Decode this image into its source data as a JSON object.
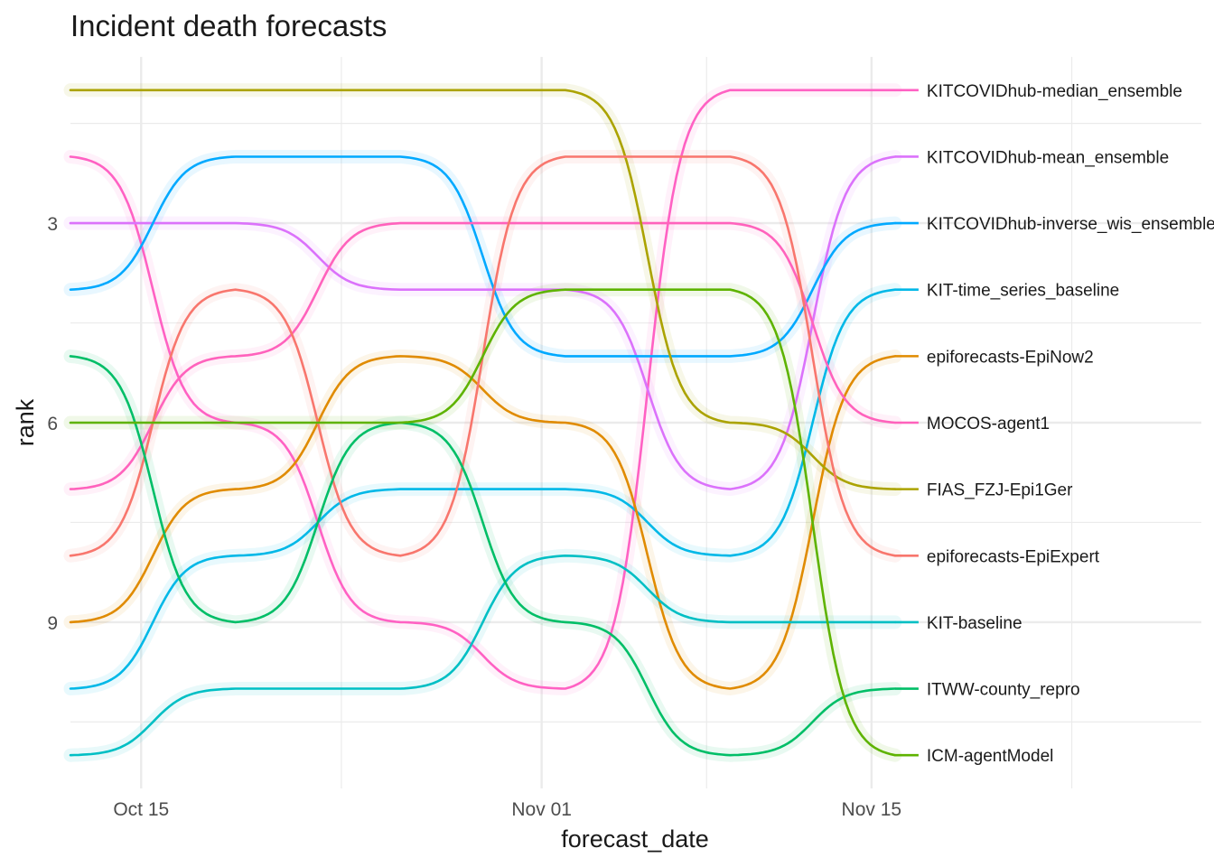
{
  "chart_data": {
    "type": "line",
    "subtype": "bump",
    "title": "Incident death forecasts",
    "xlabel": "forecast_date",
    "ylabel": "rank",
    "x": [
      "2020-10-12",
      "2020-10-19",
      "2020-10-26",
      "2020-11-02",
      "2020-11-09",
      "2020-11-16"
    ],
    "x_ticks": [
      {
        "date": "2020-10-15",
        "label": "Oct 15"
      },
      {
        "date": "2020-11-01",
        "label": "Nov 01"
      },
      {
        "date": "2020-11-15",
        "label": "Nov 15"
      }
    ],
    "xlim": [
      "2020-10-12",
      "2020-11-29"
    ],
    "y_ticks": [
      3,
      6,
      9
    ],
    "ylim": [
      11.5,
      0.5
    ],
    "y_reversed": true,
    "grid": true,
    "legend": "direct labels at right end of each line",
    "series": [
      {
        "name": "KITCOVIDhub-median_ensemble",
        "color": "#FF61C3",
        "values": [
          2,
          6,
          9,
          10,
          1,
          1
        ]
      },
      {
        "name": "KITCOVIDhub-mean_ensemble",
        "color": "#DB72FB",
        "values": [
          3,
          3,
          4,
          4,
          7,
          2
        ]
      },
      {
        "name": "KITCOVIDhub-inverse_wis_ensemble",
        "color": "#00A9FF",
        "values": [
          4,
          2,
          2,
          5,
          5,
          3
        ]
      },
      {
        "name": "KIT-time_series_baseline",
        "color": "#00B8E7",
        "values": [
          10,
          8,
          7,
          7,
          8,
          4
        ]
      },
      {
        "name": "epiforecasts-EpiNow2",
        "color": "#E08B00",
        "values": [
          9,
          7,
          5,
          6,
          10,
          5
        ]
      },
      {
        "name": "MOCOS-agent1",
        "color": "#FF62BC",
        "values": [
          7,
          5,
          3,
          3,
          3,
          6
        ]
      },
      {
        "name": "FIAS_FZJ-Epi1Ger",
        "color": "#ABA300",
        "values": [
          1,
          1,
          1,
          1,
          6,
          7
        ]
      },
      {
        "name": "epiforecasts-EpiExpert",
        "color": "#F8766D",
        "values": [
          8,
          4,
          8,
          2,
          2,
          8
        ]
      },
      {
        "name": "KIT-baseline",
        "color": "#00BFC4",
        "values": [
          11,
          10,
          10,
          8,
          9,
          9
        ]
      },
      {
        "name": "ITWW-county_repro",
        "color": "#00BE67",
        "values": [
          5,
          9,
          6,
          9,
          11,
          10
        ]
      },
      {
        "name": "ICM-agentModel",
        "color": "#5EB300",
        "values": [
          6,
          6,
          6,
          4,
          4,
          11
        ]
      }
    ]
  }
}
